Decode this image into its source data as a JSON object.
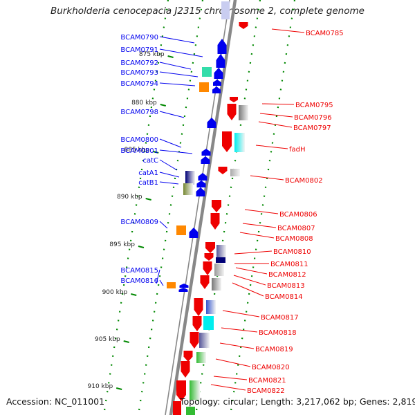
{
  "title": "Burkholderia cenocepacia J2315 chromosome 2, complete genome",
  "footer": {
    "accession": "Accession: NC_011001",
    "topology": "Topology: circular; Length: 3,217,062 bp; Genes: 2,819"
  },
  "colors": {
    "backbone": "#888888",
    "forward_strand": "#0000ee",
    "reverse_strand": "#ee0000",
    "tick": "#008800",
    "cog_orange": "#ff8800",
    "cog_teal": "#33ddaa",
    "cog_cyan": "#00eeee",
    "cog_gray": "#777777",
    "cog_navy": "#000077",
    "cog_olive": "#778833",
    "cog_slate": "#555599",
    "cog_green": "#33bb33"
  },
  "scale_labels": [
    "875 kbp",
    "880 kbp",
    "885 kbp",
    "890 kbp",
    "895 kbp",
    "900 kbp",
    "905 kbp",
    "910 kbp"
  ],
  "left_genes": [
    {
      "label": "BCAM0790"
    },
    {
      "label": "BCAM0791"
    },
    {
      "label": "BCAM0792"
    },
    {
      "label": "BCAM0793"
    },
    {
      "label": "BCAM0794"
    },
    {
      "label": "BCAM0798"
    },
    {
      "label": "BCAM0800"
    },
    {
      "label": "BCAM0801"
    },
    {
      "label": "catC"
    },
    {
      "label": "catA1"
    },
    {
      "label": "catB1"
    },
    {
      "label": "BCAM0809"
    },
    {
      "label": "BCAM0815"
    },
    {
      "label": "BCAM0816"
    }
  ],
  "right_genes": [
    {
      "label": "BCAM0785"
    },
    {
      "label": "BCAM0795"
    },
    {
      "label": "BCAM0796"
    },
    {
      "label": "BCAM0797"
    },
    {
      "label": "fadH"
    },
    {
      "label": "BCAM0802"
    },
    {
      "label": "BCAM0806"
    },
    {
      "label": "BCAM0807"
    },
    {
      "label": "BCAM0808"
    },
    {
      "label": "BCAM0810"
    },
    {
      "label": "BCAM0811"
    },
    {
      "label": "BCAM0812"
    },
    {
      "label": "BCAM0813"
    },
    {
      "label": "BCAM0814"
    },
    {
      "label": "BCAM0817"
    },
    {
      "label": "BCAM0818"
    },
    {
      "label": "BCAM0819"
    },
    {
      "label": "BCAM0820"
    },
    {
      "label": "BCAM0821"
    },
    {
      "label": "BCAM0822"
    }
  ]
}
